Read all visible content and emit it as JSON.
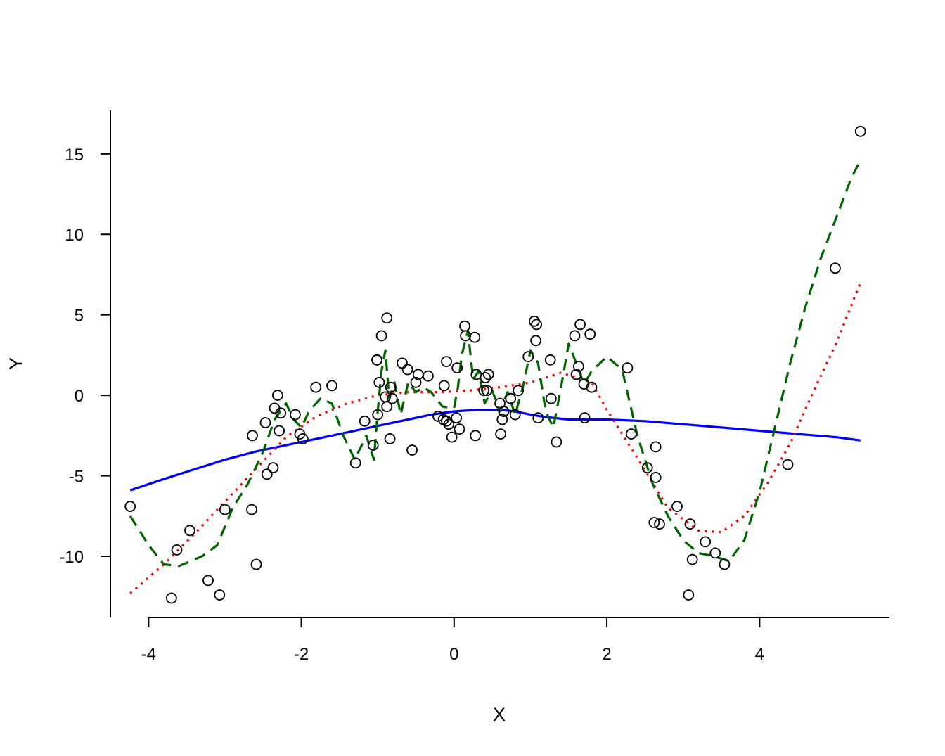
{
  "chart_data": {
    "type": "scatter",
    "title": "",
    "xlabel": "X",
    "ylabel": "Y",
    "xlim": [
      -4.5,
      5.7
    ],
    "ylim": [
      -13.8,
      17.7
    ],
    "xticks": [
      -4,
      -2,
      0,
      2,
      4
    ],
    "yticks": [
      -10,
      -5,
      0,
      5,
      10,
      15
    ],
    "xtick_labels": [
      "-4",
      "-2",
      "0",
      "2",
      "4"
    ],
    "ytick_labels": [
      "-10",
      "-5",
      "0",
      "5",
      "10",
      "15"
    ],
    "grid": false,
    "legend": "none",
    "points": {
      "x": [
        -4.24,
        -3.7,
        -3.63,
        -3.46,
        -3.22,
        -3.07,
        -3.0,
        -2.65,
        -2.64,
        -2.59,
        -2.47,
        -2.45,
        -2.37,
        -2.35,
        -2.31,
        -2.29,
        -2.27,
        -2.08,
        -2.02,
        -1.98,
        -1.81,
        -1.6,
        -1.29,
        -1.17,
        -1.06,
        -1.01,
        -1.01,
        -1.0,
        -0.98,
        -0.95,
        -0.9,
        -0.88,
        -0.88,
        -0.84,
        -0.83,
        -0.81,
        -0.68,
        -0.61,
        -0.55,
        -0.5,
        -0.47,
        -0.34,
        -0.21,
        -0.14,
        -0.13,
        -0.1,
        -0.1,
        -0.07,
        -0.03,
        0.03,
        0.04,
        0.07,
        0.14,
        0.15,
        0.27,
        0.28,
        0.29,
        0.39,
        0.41,
        0.43,
        0.45,
        0.6,
        0.61,
        0.63,
        0.65,
        0.65,
        0.74,
        0.8,
        0.84,
        0.97,
        1.05,
        1.07,
        1.08,
        1.1,
        1.26,
        1.27,
        1.34,
        1.58,
        1.6,
        1.63,
        1.65,
        1.7,
        1.71,
        1.78,
        1.8,
        2.27,
        2.32,
        2.53,
        2.62,
        2.64,
        2.64,
        2.69,
        2.92,
        3.07,
        3.09,
        3.12,
        3.29,
        3.42,
        3.54,
        4.37,
        4.99,
        5.32
      ],
      "y": [
        -6.9,
        -12.6,
        -9.6,
        -8.4,
        -11.5,
        -12.4,
        -7.1,
        -7.1,
        -2.5,
        -10.5,
        -1.7,
        -4.9,
        -4.5,
        -0.8,
        0.0,
        -2.2,
        -1.1,
        -1.2,
        -2.4,
        -2.7,
        0.5,
        0.6,
        -4.2,
        -1.6,
        -3.1,
        2.2,
        2.2,
        -1.2,
        0.8,
        3.7,
        -0.1,
        -0.7,
        4.8,
        -2.7,
        0.5,
        -0.2,
        2.0,
        1.6,
        -3.4,
        0.8,
        1.3,
        1.2,
        -1.3,
        -1.5,
        0.6,
        -1.6,
        2.1,
        -1.8,
        -2.6,
        -1.4,
        1.7,
        -2.1,
        4.3,
        3.7,
        3.6,
        -2.5,
        1.3,
        0.3,
        1.1,
        0.3,
        1.3,
        -0.5,
        -2.4,
        -1.5,
        -1.0,
        -1.0,
        -0.2,
        -1.2,
        0.3,
        2.4,
        4.6,
        3.4,
        4.4,
        -1.4,
        2.2,
        -0.2,
        -2.9,
        3.7,
        1.3,
        1.8,
        4.4,
        0.7,
        -1.4,
        3.8,
        0.5,
        1.7,
        -2.4,
        -4.5,
        -7.9,
        -3.2,
        -5.1,
        -8.0,
        -6.9,
        -12.4,
        -8.0,
        -10.2,
        -9.1,
        -9.8,
        -10.5,
        -4.3,
        7.9,
        16.4
      ],
      "marker": "open-circle",
      "color": "#000000"
    },
    "series": [
      {
        "style": "solid",
        "color": "#0000ff",
        "x": [
          -4.24,
          -3.8,
          -3.4,
          -3.0,
          -2.6,
          -2.2,
          -1.8,
          -1.4,
          -1.0,
          -0.6,
          -0.3,
          0.0,
          0.3,
          0.6,
          0.8,
          1.0,
          1.2,
          1.5,
          2.0,
          2.5,
          3.0,
          3.5,
          4.0,
          4.5,
          5.0,
          5.32
        ],
        "y": [
          -5.9,
          -5.2,
          -4.6,
          -4.0,
          -3.5,
          -3.1,
          -2.7,
          -2.3,
          -1.9,
          -1.5,
          -1.2,
          -1.0,
          -0.9,
          -0.9,
          -1.0,
          -1.2,
          -1.35,
          -1.5,
          -1.5,
          -1.6,
          -1.8,
          -2.0,
          -2.2,
          -2.4,
          -2.6,
          -2.8
        ]
      },
      {
        "style": "dotted",
        "color": "#ff0000",
        "x": [
          -4.24,
          -3.8,
          -3.4,
          -3.0,
          -2.6,
          -2.2,
          -1.8,
          -1.4,
          -1.0,
          -0.6,
          -0.2,
          0.2,
          0.6,
          1.0,
          1.4,
          1.8,
          2.0,
          2.4,
          2.8,
          3.2,
          3.5,
          3.8,
          4.1,
          4.4,
          4.7,
          5.0,
          5.32
        ],
        "y": [
          -12.3,
          -10.5,
          -8.6,
          -6.6,
          -4.6,
          -2.6,
          -1.3,
          -0.5,
          0.0,
          0.2,
          0.2,
          0.3,
          0.5,
          0.8,
          1.4,
          0.8,
          -0.9,
          -3.9,
          -7.0,
          -8.4,
          -8.5,
          -7.5,
          -5.5,
          -3.0,
          0.2,
          3.2,
          7.0
        ]
      },
      {
        "style": "dashed",
        "color": "#006400",
        "x": [
          -4.24,
          -4.0,
          -3.8,
          -3.6,
          -3.3,
          -3.1,
          -2.9,
          -2.7,
          -2.5,
          -2.35,
          -2.2,
          -2.1,
          -2.0,
          -1.9,
          -1.75,
          -1.6,
          -1.45,
          -1.3,
          -1.15,
          -1.05,
          -1.0,
          -0.95,
          -0.9,
          -0.85,
          -0.78,
          -0.7,
          -0.6,
          -0.5,
          -0.4,
          -0.3,
          -0.15,
          0.0,
          0.05,
          0.1,
          0.18,
          0.25,
          0.32,
          0.4,
          0.5,
          0.6,
          0.7,
          0.8,
          0.9,
          1.0,
          1.1,
          1.2,
          1.3,
          1.4,
          1.5,
          1.6,
          1.7,
          1.8,
          2.0,
          2.2,
          2.4,
          2.6,
          2.8,
          3.0,
          3.2,
          3.4,
          3.6,
          3.8,
          4.0,
          4.2,
          4.4,
          4.6,
          4.8,
          5.0,
          5.2,
          5.32
        ],
        "y": [
          -7.5,
          -9.3,
          -10.5,
          -10.6,
          -10.0,
          -9.3,
          -7.0,
          -5.5,
          -3.5,
          -1.5,
          -0.5,
          -1.5,
          -2.0,
          -1.0,
          -0.2,
          -0.5,
          -2.5,
          -4.0,
          -2.5,
          -4.0,
          -1.0,
          1.5,
          2.8,
          -0.2,
          0.8,
          -1.2,
          0.8,
          0.2,
          0.5,
          0.2,
          -0.7,
          -0.8,
          0.5,
          2.5,
          4.0,
          1.0,
          1.5,
          -0.5,
          0.3,
          -1.0,
          0.2,
          -1.2,
          0.5,
          2.8,
          2.0,
          -1.0,
          -2.0,
          0.5,
          3.2,
          2.0,
          0.7,
          1.5,
          2.4,
          1.6,
          -2.5,
          -5.5,
          -7.5,
          -9.0,
          -9.8,
          -10.0,
          -10.3,
          -9.0,
          -6.0,
          -2.0,
          2.0,
          5.5,
          8.5,
          11.0,
          13.5,
          14.6
        ]
      }
    ]
  }
}
